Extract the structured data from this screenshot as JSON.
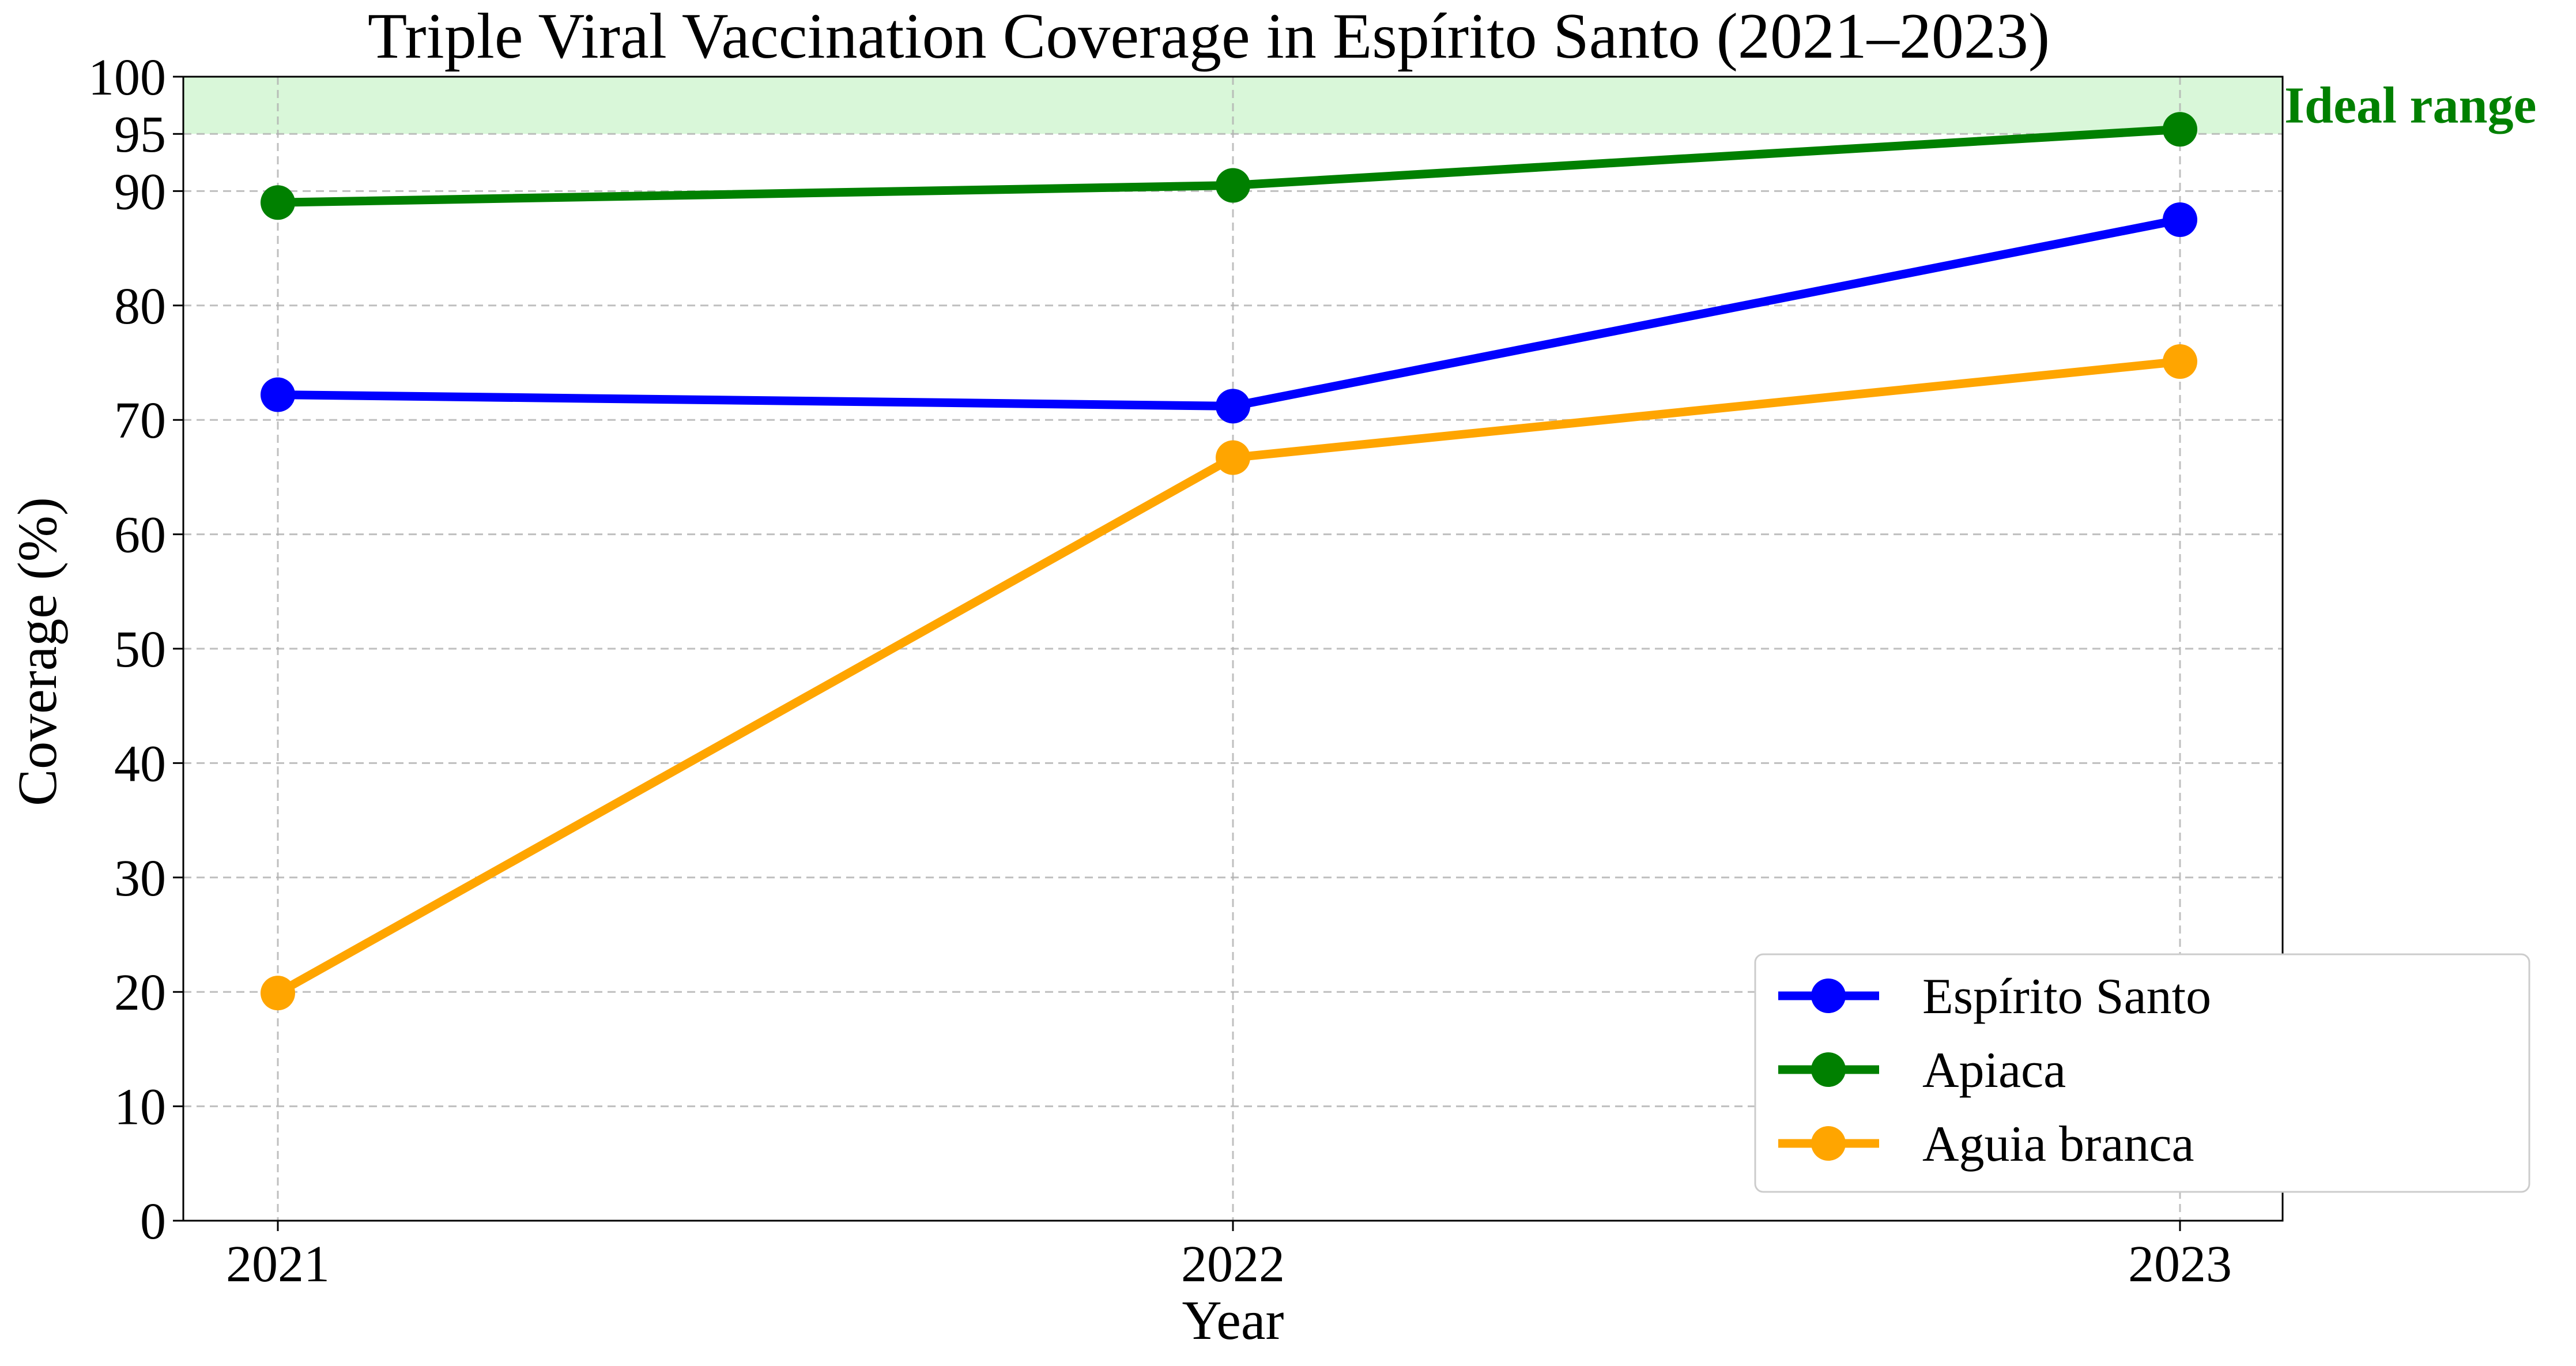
{
  "chart_data": {
    "type": "line",
    "title": "Triple Viral Vaccination Coverage in Espírito Santo (2021–2023)",
    "xlabel": "Year",
    "ylabel": "Coverage (%)",
    "categories": [
      "2021",
      "2022",
      "2023"
    ],
    "ylim": [
      0,
      100
    ],
    "yticks": [
      0,
      10,
      20,
      30,
      40,
      50,
      60,
      70,
      80,
      90,
      95,
      100
    ],
    "grid": true,
    "legend_position": "bottom-right",
    "ideal_range": {
      "from": 95,
      "to": 100,
      "label": "Ideal range",
      "fill": "#d9f7d9",
      "label_color": "#008000"
    },
    "series": [
      {
        "name": "Espírito Santo",
        "color": "#0000ff",
        "values": [
          72.2,
          71.2,
          87.5
        ]
      },
      {
        "name": "Apiaca",
        "color": "#008000",
        "values": [
          89.0,
          90.5,
          95.4
        ]
      },
      {
        "name": "Aguia branca",
        "color": "#ffa500",
        "values": [
          19.9,
          66.7,
          75.1
        ]
      }
    ]
  }
}
